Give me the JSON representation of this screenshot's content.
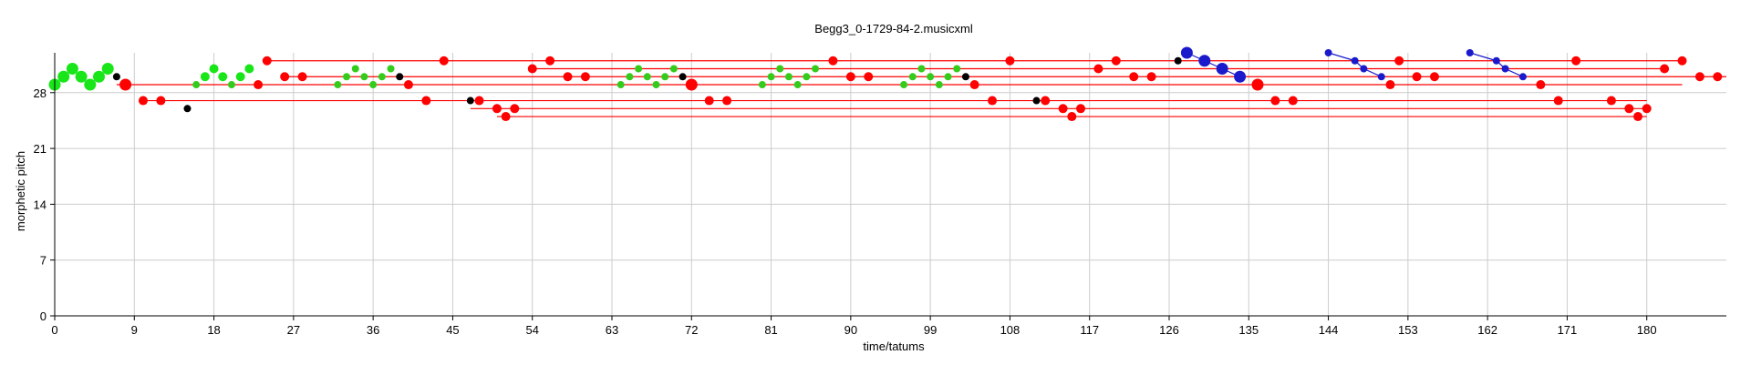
{
  "chart_data": {
    "type": "scatter",
    "title": "Begg3_0-1729-84-2.musicxml",
    "xlabel": "time/tatums",
    "ylabel": "morphetic pitch",
    "xlim": [
      0,
      189
    ],
    "ylim": [
      0,
      33
    ],
    "xticks": [
      0,
      9,
      18,
      27,
      36,
      45,
      54,
      63,
      72,
      81,
      90,
      99,
      108,
      117,
      126,
      135,
      144,
      153,
      162,
      171,
      180
    ],
    "yticks": [
      0,
      7,
      14,
      21,
      28
    ],
    "grid": true,
    "colors": {
      "green": "#19e619",
      "olive": "#33cc1a",
      "red": "#ff0000",
      "black": "#000000",
      "blue": "#1a1acc"
    },
    "segments": [
      {
        "color": "red",
        "x1": 7,
        "x2": 184,
        "y": 29
      },
      {
        "color": "red",
        "x1": 10,
        "x2": 180,
        "y": 27
      },
      {
        "color": "red",
        "x1": 24,
        "x2": 184,
        "y": 32
      },
      {
        "color": "red",
        "x1": 26,
        "x2": 189,
        "y": 30
      },
      {
        "color": "red",
        "x1": 47,
        "x2": 180,
        "y": 26
      },
      {
        "color": "red",
        "x1": 50,
        "x2": 180,
        "y": 25
      },
      {
        "color": "red",
        "x1": 54,
        "x2": 182,
        "y": 31
      },
      {
        "color": "blue",
        "x1": 128,
        "x2": 130,
        "y1": 33,
        "y2": 32
      },
      {
        "color": "blue",
        "x1": 130,
        "x2": 132,
        "y1": 32,
        "y2": 31
      },
      {
        "color": "blue",
        "x1": 132,
        "x2": 134,
        "y1": 31,
        "y2": 30
      },
      {
        "color": "blue",
        "x1": 144,
        "x2": 147,
        "y1": 33,
        "y2": 32
      },
      {
        "color": "blue",
        "x1": 147,
        "x2": 148,
        "y1": 32,
        "y2": 31
      },
      {
        "color": "blue",
        "x1": 148,
        "x2": 150,
        "y1": 31,
        "y2": 30
      },
      {
        "color": "blue",
        "x1": 160,
        "x2": 163,
        "y1": 33,
        "y2": 32
      },
      {
        "color": "blue",
        "x1": 163,
        "x2": 164,
        "y1": 32,
        "y2": 31
      },
      {
        "color": "blue",
        "x1": 164,
        "x2": 166,
        "y1": 31,
        "y2": 30
      }
    ],
    "points": [
      {
        "x": 0,
        "y": 29,
        "color": "green",
        "size": "large"
      },
      {
        "x": 1,
        "y": 30,
        "color": "green",
        "size": "large"
      },
      {
        "x": 2,
        "y": 31,
        "color": "green",
        "size": "large"
      },
      {
        "x": 3,
        "y": 30,
        "color": "green",
        "size": "large"
      },
      {
        "x": 4,
        "y": 29,
        "color": "green",
        "size": "large"
      },
      {
        "x": 5,
        "y": 30,
        "color": "green",
        "size": "large"
      },
      {
        "x": 6,
        "y": 31,
        "color": "green",
        "size": "large"
      },
      {
        "x": 7,
        "y": 30,
        "color": "black",
        "size": "small"
      },
      {
        "x": 8,
        "y": 29,
        "color": "red",
        "size": "large"
      },
      {
        "x": 10,
        "y": 27,
        "color": "red",
        "size": "medium"
      },
      {
        "x": 12,
        "y": 27,
        "color": "red",
        "size": "medium"
      },
      {
        "x": 15,
        "y": 26,
        "color": "black",
        "size": "small"
      },
      {
        "x": 16,
        "y": 29,
        "color": "olive",
        "size": "small"
      },
      {
        "x": 17,
        "y": 30,
        "color": "green",
        "size": "medium"
      },
      {
        "x": 18,
        "y": 31,
        "color": "green",
        "size": "medium"
      },
      {
        "x": 19,
        "y": 30,
        "color": "green",
        "size": "medium"
      },
      {
        "x": 20,
        "y": 29,
        "color": "olive",
        "size": "small"
      },
      {
        "x": 21,
        "y": 30,
        "color": "green",
        "size": "medium"
      },
      {
        "x": 22,
        "y": 31,
        "color": "green",
        "size": "medium"
      },
      {
        "x": 23,
        "y": 29,
        "color": "red",
        "size": "medium"
      },
      {
        "x": 24,
        "y": 32,
        "color": "red",
        "size": "medium"
      },
      {
        "x": 26,
        "y": 30,
        "color": "red",
        "size": "medium"
      },
      {
        "x": 28,
        "y": 30,
        "color": "red",
        "size": "medium"
      },
      {
        "x": 32,
        "y": 29,
        "color": "olive",
        "size": "small"
      },
      {
        "x": 33,
        "y": 30,
        "color": "olive",
        "size": "small"
      },
      {
        "x": 34,
        "y": 31,
        "color": "olive",
        "size": "small"
      },
      {
        "x": 35,
        "y": 30,
        "color": "olive",
        "size": "small"
      },
      {
        "x": 36,
        "y": 29,
        "color": "olive",
        "size": "small"
      },
      {
        "x": 37,
        "y": 30,
        "color": "olive",
        "size": "small"
      },
      {
        "x": 38,
        "y": 31,
        "color": "olive",
        "size": "small"
      },
      {
        "x": 39,
        "y": 30,
        "color": "black",
        "size": "small"
      },
      {
        "x": 40,
        "y": 29,
        "color": "red",
        "size": "medium"
      },
      {
        "x": 42,
        "y": 27,
        "color": "red",
        "size": "medium"
      },
      {
        "x": 44,
        "y": 32,
        "color": "red",
        "size": "medium"
      },
      {
        "x": 47,
        "y": 27,
        "color": "black",
        "size": "small"
      },
      {
        "x": 48,
        "y": 27,
        "color": "red",
        "size": "medium"
      },
      {
        "x": 50,
        "y": 26,
        "color": "red",
        "size": "medium"
      },
      {
        "x": 51,
        "y": 25,
        "color": "red",
        "size": "medium"
      },
      {
        "x": 52,
        "y": 26,
        "color": "red",
        "size": "medium"
      },
      {
        "x": 54,
        "y": 31,
        "color": "red",
        "size": "medium"
      },
      {
        "x": 56,
        "y": 32,
        "color": "red",
        "size": "medium"
      },
      {
        "x": 58,
        "y": 30,
        "color": "red",
        "size": "medium"
      },
      {
        "x": 60,
        "y": 30,
        "color": "red",
        "size": "medium"
      },
      {
        "x": 64,
        "y": 29,
        "color": "olive",
        "size": "small"
      },
      {
        "x": 65,
        "y": 30,
        "color": "olive",
        "size": "small"
      },
      {
        "x": 66,
        "y": 31,
        "color": "olive",
        "size": "small"
      },
      {
        "x": 67,
        "y": 30,
        "color": "olive",
        "size": "small"
      },
      {
        "x": 68,
        "y": 29,
        "color": "olive",
        "size": "small"
      },
      {
        "x": 69,
        "y": 30,
        "color": "olive",
        "size": "small"
      },
      {
        "x": 70,
        "y": 31,
        "color": "olive",
        "size": "small"
      },
      {
        "x": 71,
        "y": 30,
        "color": "black",
        "size": "small"
      },
      {
        "x": 72,
        "y": 29,
        "color": "red",
        "size": "large"
      },
      {
        "x": 74,
        "y": 27,
        "color": "red",
        "size": "medium"
      },
      {
        "x": 76,
        "y": 27,
        "color": "red",
        "size": "medium"
      },
      {
        "x": 80,
        "y": 29,
        "color": "olive",
        "size": "small"
      },
      {
        "x": 81,
        "y": 30,
        "color": "olive",
        "size": "small"
      },
      {
        "x": 82,
        "y": 31,
        "color": "olive",
        "size": "small"
      },
      {
        "x": 83,
        "y": 30,
        "color": "olive",
        "size": "small"
      },
      {
        "x": 84,
        "y": 29,
        "color": "olive",
        "size": "small"
      },
      {
        "x": 85,
        "y": 30,
        "color": "olive",
        "size": "small"
      },
      {
        "x": 86,
        "y": 31,
        "color": "olive",
        "size": "small"
      },
      {
        "x": 88,
        "y": 32,
        "color": "red",
        "size": "medium"
      },
      {
        "x": 90,
        "y": 30,
        "color": "red",
        "size": "medium"
      },
      {
        "x": 92,
        "y": 30,
        "color": "red",
        "size": "medium"
      },
      {
        "x": 96,
        "y": 29,
        "color": "olive",
        "size": "small"
      },
      {
        "x": 97,
        "y": 30,
        "color": "olive",
        "size": "small"
      },
      {
        "x": 98,
        "y": 31,
        "color": "olive",
        "size": "small"
      },
      {
        "x": 99,
        "y": 30,
        "color": "olive",
        "size": "small"
      },
      {
        "x": 100,
        "y": 29,
        "color": "olive",
        "size": "small"
      },
      {
        "x": 101,
        "y": 30,
        "color": "olive",
        "size": "small"
      },
      {
        "x": 102,
        "y": 31,
        "color": "olive",
        "size": "small"
      },
      {
        "x": 103,
        "y": 30,
        "color": "black",
        "size": "small"
      },
      {
        "x": 104,
        "y": 29,
        "color": "red",
        "size": "medium"
      },
      {
        "x": 106,
        "y": 27,
        "color": "red",
        "size": "medium"
      },
      {
        "x": 108,
        "y": 32,
        "color": "red",
        "size": "medium"
      },
      {
        "x": 111,
        "y": 27,
        "color": "black",
        "size": "small"
      },
      {
        "x": 112,
        "y": 27,
        "color": "red",
        "size": "medium"
      },
      {
        "x": 114,
        "y": 26,
        "color": "red",
        "size": "medium"
      },
      {
        "x": 115,
        "y": 25,
        "color": "red",
        "size": "medium"
      },
      {
        "x": 116,
        "y": 26,
        "color": "red",
        "size": "medium"
      },
      {
        "x": 118,
        "y": 31,
        "color": "red",
        "size": "medium"
      },
      {
        "x": 120,
        "y": 32,
        "color": "red",
        "size": "medium"
      },
      {
        "x": 122,
        "y": 30,
        "color": "red",
        "size": "medium"
      },
      {
        "x": 124,
        "y": 30,
        "color": "red",
        "size": "medium"
      },
      {
        "x": 127,
        "y": 32,
        "color": "black",
        "size": "small"
      },
      {
        "x": 128,
        "y": 33,
        "color": "blue",
        "size": "large"
      },
      {
        "x": 130,
        "y": 32,
        "color": "blue",
        "size": "large"
      },
      {
        "x": 132,
        "y": 31,
        "color": "blue",
        "size": "large"
      },
      {
        "x": 134,
        "y": 30,
        "color": "blue",
        "size": "large"
      },
      {
        "x": 136,
        "y": 29,
        "color": "red",
        "size": "large"
      },
      {
        "x": 138,
        "y": 27,
        "color": "red",
        "size": "medium"
      },
      {
        "x": 140,
        "y": 27,
        "color": "red",
        "size": "medium"
      },
      {
        "x": 144,
        "y": 33,
        "color": "blue",
        "size": "small"
      },
      {
        "x": 147,
        "y": 32,
        "color": "blue",
        "size": "small"
      },
      {
        "x": 148,
        "y": 31,
        "color": "blue",
        "size": "small"
      },
      {
        "x": 150,
        "y": 30,
        "color": "blue",
        "size": "small"
      },
      {
        "x": 151,
        "y": 29,
        "color": "red",
        "size": "medium"
      },
      {
        "x": 152,
        "y": 32,
        "color": "red",
        "size": "medium"
      },
      {
        "x": 154,
        "y": 30,
        "color": "red",
        "size": "medium"
      },
      {
        "x": 156,
        "y": 30,
        "color": "red",
        "size": "medium"
      },
      {
        "x": 160,
        "y": 33,
        "color": "blue",
        "size": "small"
      },
      {
        "x": 163,
        "y": 32,
        "color": "blue",
        "size": "small"
      },
      {
        "x": 164,
        "y": 31,
        "color": "blue",
        "size": "small"
      },
      {
        "x": 166,
        "y": 30,
        "color": "blue",
        "size": "small"
      },
      {
        "x": 168,
        "y": 29,
        "color": "red",
        "size": "medium"
      },
      {
        "x": 170,
        "y": 27,
        "color": "red",
        "size": "medium"
      },
      {
        "x": 172,
        "y": 32,
        "color": "red",
        "size": "medium"
      },
      {
        "x": 176,
        "y": 27,
        "color": "red",
        "size": "medium"
      },
      {
        "x": 178,
        "y": 26,
        "color": "red",
        "size": "medium"
      },
      {
        "x": 179,
        "y": 25,
        "color": "red",
        "size": "medium"
      },
      {
        "x": 180,
        "y": 26,
        "color": "red",
        "size": "medium"
      },
      {
        "x": 182,
        "y": 31,
        "color": "red",
        "size": "medium"
      },
      {
        "x": 184,
        "y": 32,
        "color": "red",
        "size": "medium"
      },
      {
        "x": 186,
        "y": 30,
        "color": "red",
        "size": "medium"
      },
      {
        "x": 188,
        "y": 30,
        "color": "red",
        "size": "medium"
      }
    ]
  }
}
